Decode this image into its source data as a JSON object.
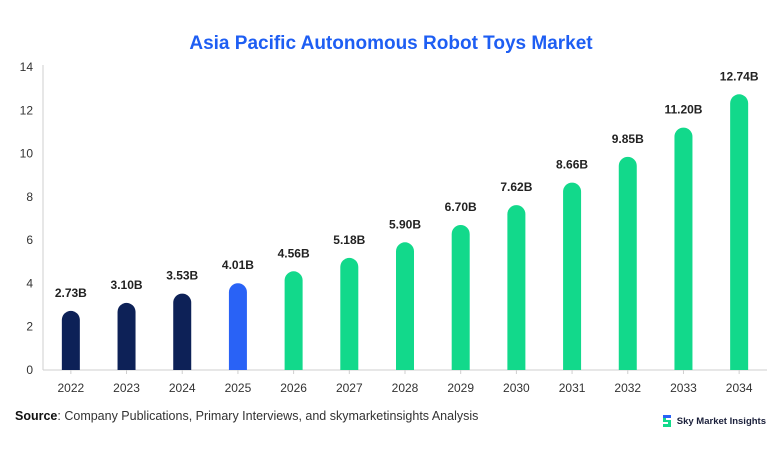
{
  "chart_data": {
    "type": "bar",
    "title": "Asia Pacific Autonomous Robot Toys Market",
    "categories": [
      "2022",
      "2023",
      "2024",
      "2025",
      "2026",
      "2027",
      "2028",
      "2029",
      "2030",
      "2031",
      "2032",
      "2033",
      "2034"
    ],
    "values": [
      2.73,
      3.1,
      3.53,
      4.01,
      4.56,
      5.18,
      5.9,
      6.7,
      7.62,
      8.66,
      9.85,
      11.2,
      12.74
    ],
    "data_labels": [
      "2.73B",
      "3.10B",
      "3.53B",
      "4.01B",
      "4.56B",
      "5.18B",
      "5.90B",
      "6.70B",
      "7.62B",
      "8.66B",
      "9.85B",
      "11.20B",
      "12.74B"
    ],
    "ylim": [
      0,
      14
    ],
    "yticks": [
      0,
      2,
      4,
      6,
      8,
      10,
      12,
      14
    ],
    "xlabel": "",
    "ylabel": "",
    "grid": false,
    "legend": "none",
    "bar_colors": {
      "historical": "#0d2157",
      "current": "#2962f6",
      "forecast": "#12d98b"
    },
    "color_groups": [
      "historical",
      "historical",
      "historical",
      "current",
      "forecast",
      "forecast",
      "forecast",
      "forecast",
      "forecast",
      "forecast",
      "forecast",
      "forecast",
      "forecast"
    ]
  },
  "footer": {
    "source_label": "Source",
    "source_text": ": Company Publications, Primary Interviews, and skymarketinsights Analysis",
    "brand_name": "Sky Market Insights",
    "brand_icon": "brand-logo-icon"
  }
}
